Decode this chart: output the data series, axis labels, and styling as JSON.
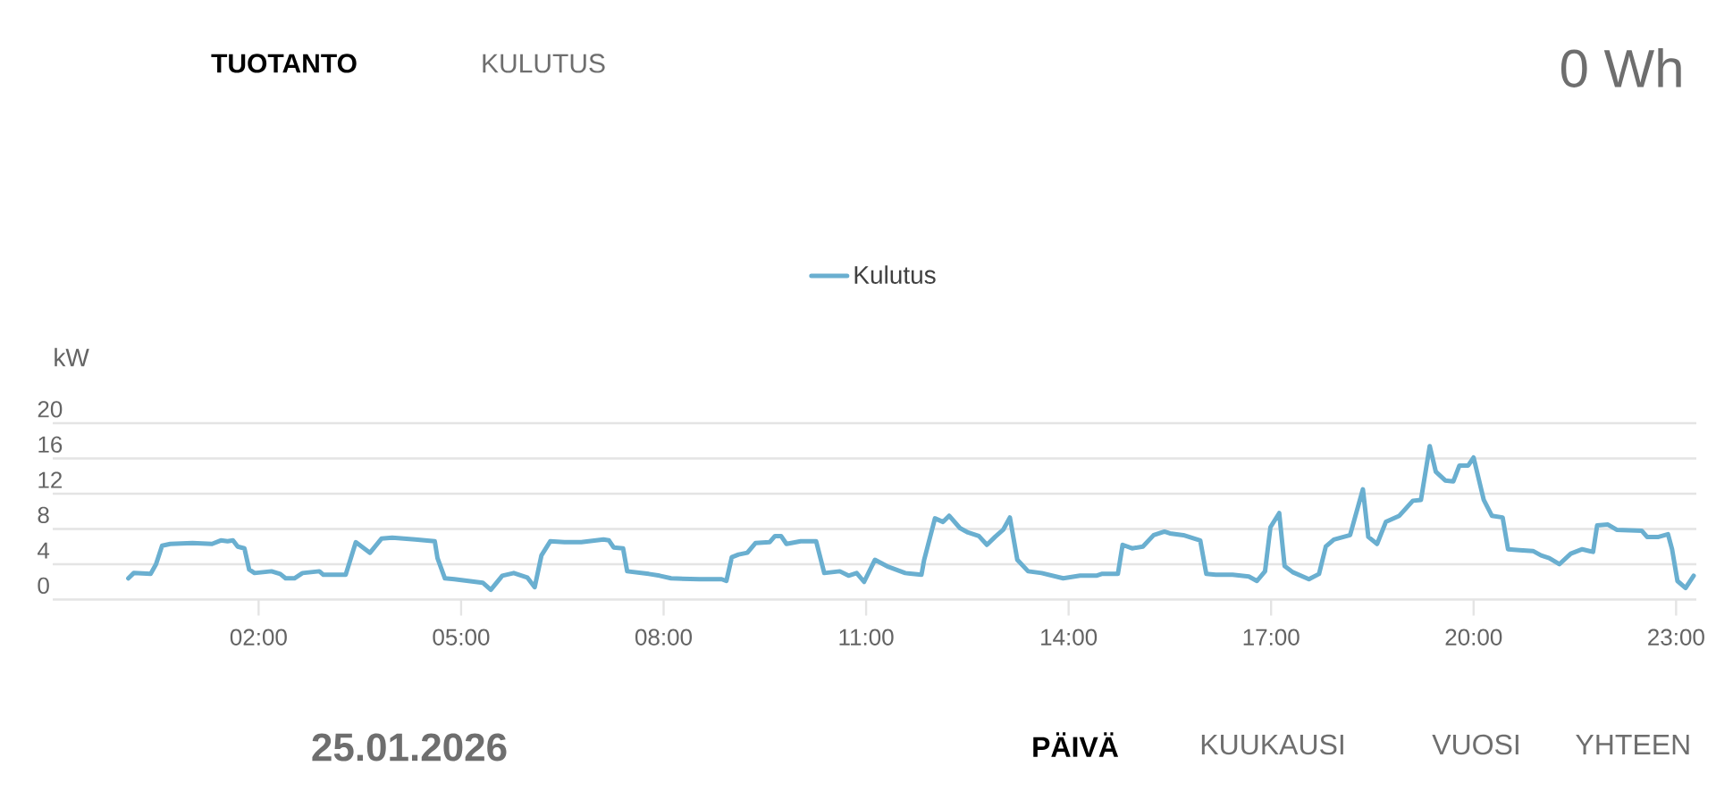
{
  "chart_data": {
    "type": "line",
    "x": [
      0.07,
      0.15,
      0.4,
      0.48,
      0.57,
      0.69,
      1.02,
      1.31,
      1.44,
      1.54,
      1.62,
      1.69,
      1.79,
      1.86,
      1.94,
      2.19,
      2.32,
      2.4,
      2.53,
      2.65,
      2.9,
      2.96,
      3.15,
      3.29,
      3.44,
      3.65,
      3.82,
      3.98,
      4.32,
      4.61,
      4.65,
      4.76,
      4.9,
      5.11,
      5.32,
      5.44,
      5.61,
      5.78,
      5.98,
      6.09,
      6.19,
      6.32,
      6.53,
      6.78,
      7.11,
      7.19,
      7.26,
      7.4,
      7.46,
      7.78,
      7.94,
      8.11,
      8.53,
      8.86,
      8.93,
      9.01,
      9.11,
      9.24,
      9.36,
      9.57,
      9.65,
      9.74,
      9.82,
      10.03,
      10.26,
      10.38,
      10.61,
      10.74,
      10.86,
      10.97,
      11.13,
      11.33,
      11.58,
      11.82,
      11.86,
      12.02,
      12.14,
      12.23,
      12.39,
      12.51,
      12.67,
      12.79,
      12.91,
      13.03,
      13.13,
      13.24,
      13.4,
      13.6,
      13.92,
      14.17,
      14.41,
      14.49,
      14.73,
      14.8,
      14.94,
      15.1,
      15.26,
      15.42,
      15.5,
      15.7,
      15.95,
      16.04,
      16.18,
      16.43,
      16.67,
      16.79,
      16.91,
      16.99,
      17.12,
      17.2,
      17.32,
      17.56,
      17.71,
      17.81,
      17.93,
      18.17,
      18.25,
      18.36,
      18.44,
      18.57,
      18.7,
      18.9,
      19.1,
      19.22,
      19.35,
      19.44,
      19.58,
      19.7,
      19.79,
      19.92,
      20.0,
      20.15,
      20.27,
      20.43,
      20.51,
      20.68,
      20.88,
      21.0,
      21.12,
      21.27,
      21.44,
      21.61,
      21.77,
      21.83,
      21.99,
      22.12,
      22.49,
      22.57,
      22.74,
      22.88,
      22.94,
      23.02,
      23.14,
      23.26
    ],
    "series": [
      {
        "name": "Kulutus",
        "color": "#6aafd0",
        "values": [
          2.4,
          3.0,
          2.9,
          4.0,
          6.1,
          6.3,
          6.4,
          6.3,
          6.7,
          6.6,
          6.7,
          6.0,
          5.8,
          3.4,
          3.0,
          3.2,
          2.9,
          2.4,
          2.4,
          3.0,
          3.2,
          2.8,
          2.8,
          2.8,
          6.5,
          5.3,
          6.9,
          7.0,
          6.8,
          6.6,
          4.7,
          2.4,
          2.3,
          2.1,
          1.9,
          1.1,
          2.7,
          3.0,
          2.5,
          1.4,
          5.0,
          6.6,
          6.5,
          6.5,
          6.8,
          6.7,
          5.9,
          5.8,
          3.2,
          2.9,
          2.7,
          2.4,
          2.3,
          2.3,
          2.1,
          4.8,
          5.1,
          5.3,
          6.4,
          6.5,
          7.2,
          7.2,
          6.3,
          6.6,
          6.6,
          3.0,
          3.2,
          2.7,
          3.0,
          2.0,
          4.5,
          3.7,
          3.0,
          2.8,
          4.5,
          9.2,
          8.8,
          9.5,
          8.1,
          7.6,
          7.2,
          6.2,
          7.1,
          7.9,
          9.3,
          4.5,
          3.2,
          3.0,
          2.4,
          2.7,
          2.7,
          2.9,
          2.9,
          6.2,
          5.8,
          6.0,
          7.3,
          7.7,
          7.5,
          7.3,
          6.7,
          2.9,
          2.8,
          2.8,
          2.6,
          2.1,
          3.2,
          8.2,
          9.8,
          3.8,
          3.1,
          2.3,
          2.9,
          6.0,
          6.8,
          7.3,
          9.5,
          12.5,
          7.1,
          6.3,
          8.8,
          9.5,
          11.2,
          11.3,
          17.4,
          14.5,
          13.5,
          13.4,
          15.2,
          15.2,
          16.1,
          11.3,
          9.5,
          9.3,
          5.7,
          5.6,
          5.5,
          5.0,
          4.7,
          4.0,
          5.2,
          5.7,
          5.4,
          8.4,
          8.5,
          7.9,
          7.8,
          7.1,
          7.1,
          7.4,
          5.7,
          2.1,
          1.3,
          2.7
        ]
      }
    ],
    "ylabel": "kW",
    "xlim": [
      -1.05,
      23.3
    ],
    "xticks": [
      {
        "value": 2,
        "label": "02:00"
      },
      {
        "value": 5,
        "label": "05:00"
      },
      {
        "value": 8,
        "label": "08:00"
      },
      {
        "value": 11,
        "label": "11:00"
      },
      {
        "value": 14,
        "label": "14:00"
      },
      {
        "value": 17,
        "label": "17:00"
      },
      {
        "value": 20,
        "label": "20:00"
      },
      {
        "value": 23,
        "label": "23:00"
      }
    ],
    "ylim": [
      0,
      20
    ],
    "yticks": [
      0,
      4,
      8,
      12,
      16,
      20
    ],
    "grid": "y",
    "legend": "top",
    "marker": "none",
    "line_style": "solid",
    "annotations": [
      "TUOTANTO",
      "KULUTUS",
      "0 Wh",
      "25.01.2026",
      "PÄIVÄ",
      "KUUKAUSI",
      "VUOSI",
      "YHTEEN"
    ]
  }
}
